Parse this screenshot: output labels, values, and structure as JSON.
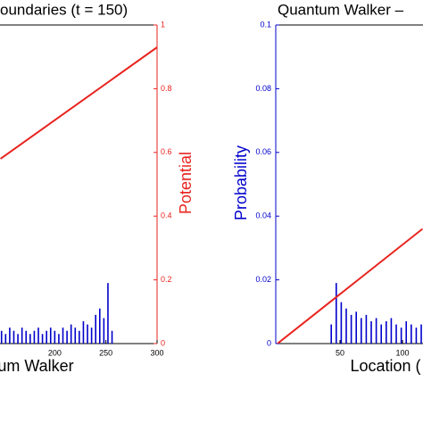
{
  "chart_data": [
    {
      "type": "combo",
      "title": "oundaries  (t = 150)",
      "xlabel": "um Walker",
      "y2label": "Potential",
      "xlim": [
        146.5,
        300
      ],
      "xticks": [
        200,
        250,
        300
      ],
      "ylim": [
        0,
        0.1
      ],
      "y2lim": [
        0,
        1
      ],
      "y2ticks": [
        0,
        0.2,
        0.4,
        0.6,
        0.8,
        1
      ],
      "series": [
        {
          "type": "stem",
          "color": "#0000cc",
          "x": [
            148,
            152,
            156,
            160,
            164,
            168,
            172,
            176,
            180,
            184,
            188,
            192,
            196,
            200,
            204,
            208,
            212,
            216,
            220,
            224,
            228,
            232,
            236,
            240,
            244,
            248,
            252,
            256
          ],
          "values": [
            0.004,
            0.003,
            0.005,
            0.004,
            0.003,
            0.005,
            0.004,
            0.003,
            0.004,
            0.005,
            0.003,
            0.004,
            0.005,
            0.004,
            0.003,
            0.005,
            0.004,
            0.006,
            0.005,
            0.004,
            0.007,
            0.006,
            0.005,
            0.009,
            0.011,
            0.008,
            0.019,
            0.004
          ]
        },
        {
          "type": "line",
          "axis": "y2",
          "color": "#e8231e",
          "x": [
            147,
            300
          ],
          "values": [
            0.58,
            0.93
          ]
        }
      ]
    },
    {
      "type": "combo",
      "title": "Quantum Walker –",
      "xlabel": "Location (",
      "ylabel": "Probability",
      "xlim": [
        -1.4,
        116.4
      ],
      "xticks": [
        50,
        100
      ],
      "ylim": [
        0,
        0.1
      ],
      "yticks": [
        0,
        0.02,
        0.04,
        0.06,
        0.08,
        0.1
      ],
      "y2lim": [
        0,
        1
      ],
      "series": [
        {
          "type": "stem",
          "color": "#0000cc",
          "x": [
            43,
            47,
            51,
            55,
            59,
            63,
            67,
            71,
            75,
            79,
            83,
            87,
            91,
            95,
            99,
            103,
            107,
            111,
            115
          ],
          "values": [
            0.006,
            0.019,
            0.013,
            0.011,
            0.009,
            0.01,
            0.008,
            0.009,
            0.007,
            0.008,
            0.006,
            0.007,
            0.008,
            0.006,
            0.005,
            0.007,
            0.006,
            0.005,
            0.006
          ]
        },
        {
          "type": "line",
          "axis": "y2",
          "color": "#e8231e",
          "x": [
            0,
            116
          ],
          "values": [
            0,
            0.36
          ]
        }
      ]
    }
  ]
}
